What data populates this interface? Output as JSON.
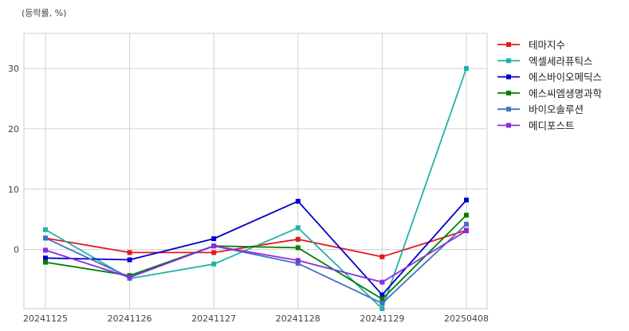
{
  "chart_data": {
    "type": "line",
    "unit_label": "(등락률, %)",
    "categories": [
      "20241125",
      "20241126",
      "20241127",
      "20241128",
      "20241129",
      "20250408"
    ],
    "ylim": [
      -9.8,
      35.8
    ],
    "yticks": [
      0,
      10,
      20,
      30
    ],
    "grid": true,
    "legend_position": "right",
    "series": [
      {
        "name": "테마지수",
        "color": "#e31a1c",
        "values": [
          1.9,
          -0.5,
          -0.5,
          1.7,
          -1.2,
          3.2
        ]
      },
      {
        "name": "엑셀세라퓨틱스",
        "color": "#20b2aa",
        "values": [
          3.3,
          -4.8,
          -2.4,
          3.6,
          -9.8,
          30.0
        ]
      },
      {
        "name": "에스바이오메딕스",
        "color": "#0000cd",
        "values": [
          -1.4,
          -1.7,
          1.8,
          8.0,
          -7.5,
          8.2
        ]
      },
      {
        "name": "에스씨엠생명과학",
        "color": "#008000",
        "values": [
          -2.1,
          -4.3,
          0.6,
          0.3,
          -8.2,
          5.7
        ]
      },
      {
        "name": "바이오솔루션",
        "color": "#4472c4",
        "values": [
          1.9,
          -4.6,
          0.6,
          -2.3,
          -8.9,
          4.2
        ]
      },
      {
        "name": "메디포스트",
        "color": "#8a2be2",
        "values": [
          -0.1,
          -4.6,
          0.6,
          -1.8,
          -5.4,
          3.1
        ]
      }
    ]
  }
}
